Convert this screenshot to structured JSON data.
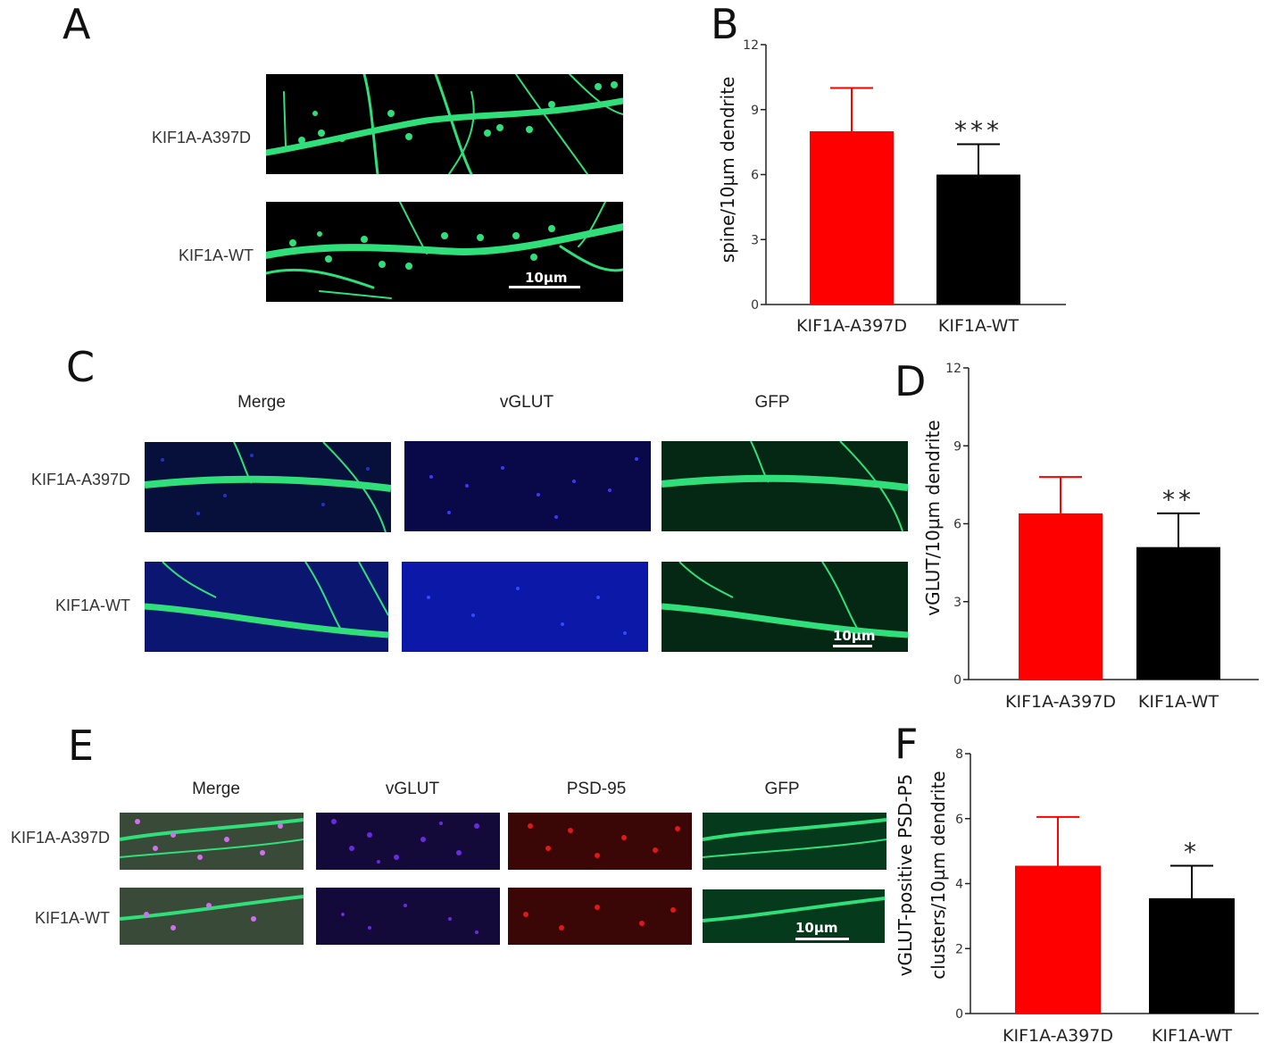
{
  "panels": {
    "A": {
      "letter": "A",
      "rows": [
        "KIF1A-A397D",
        "KIF1A-WT"
      ],
      "scale_label": "10µm"
    },
    "B": {
      "letter": "B"
    },
    "C": {
      "letter": "C",
      "columns": [
        "Merge",
        "vGLUT",
        "GFP"
      ],
      "rows": [
        "KIF1A-A397D",
        "KIF1A-WT"
      ],
      "scale_label": "10µm"
    },
    "D": {
      "letter": "D"
    },
    "E": {
      "letter": "E",
      "columns": [
        "Merge",
        "vGLUT",
        "PSD-95",
        "GFP"
      ],
      "rows": [
        "KIF1A-A397D",
        "KIF1A-WT"
      ],
      "scale_label": "10µm"
    },
    "F": {
      "letter": "F"
    }
  },
  "colors": {
    "mutant": "#ff0000",
    "wildtype": "#000000",
    "gfp": "#2fe07a",
    "vglut": "#2a2adf",
    "psd95": "#d81818"
  },
  "chart_data": [
    {
      "id": "B",
      "type": "bar",
      "categories": [
        "KIF1A-A397D",
        "KIF1A-WT"
      ],
      "values": [
        8.0,
        6.0
      ],
      "errors": [
        2.0,
        1.4
      ],
      "colors": [
        "#ff0000",
        "#000000"
      ],
      "ylabel": [
        "spine/10µm dendrite"
      ],
      "ylim": [
        0,
        12
      ],
      "yticks": [
        0,
        3,
        6,
        9,
        12
      ],
      "significance": [
        "",
        "***"
      ]
    },
    {
      "id": "D",
      "type": "bar",
      "categories": [
        "KIF1A-A397D",
        "KIF1A-WT"
      ],
      "values": [
        6.4,
        5.1
      ],
      "errors": [
        1.4,
        1.3
      ],
      "colors": [
        "#ff0000",
        "#000000"
      ],
      "ylabel": [
        "vGLUT/10µm dendrite"
      ],
      "ylim": [
        0,
        12
      ],
      "yticks": [
        0,
        3,
        6,
        9,
        12
      ],
      "significance": [
        "",
        "**"
      ]
    },
    {
      "id": "F",
      "type": "bar",
      "categories": [
        "KIF1A-A397D",
        "KIF1A-WT"
      ],
      "values": [
        4.55,
        3.55
      ],
      "errors": [
        1.5,
        1.0
      ],
      "colors": [
        "#ff0000",
        "#000000"
      ],
      "ylabel": [
        "vGLUT-positive PSD-P5",
        "clusters/10µm dendrite"
      ],
      "ylim": [
        0,
        8
      ],
      "yticks": [
        0,
        2,
        4,
        6,
        8
      ],
      "significance": [
        "",
        "*"
      ]
    }
  ]
}
